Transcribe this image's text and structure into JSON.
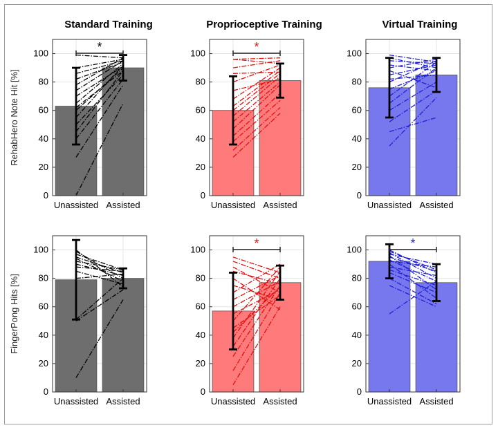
{
  "figure": {
    "column_titles": [
      "Standard Training",
      "Proprioceptive Training",
      "Virtual Training"
    ],
    "row_labels": [
      "RehabHero Note Hit [%]",
      "FingerPong Hits [%]"
    ]
  },
  "chart_data": [
    {
      "type": "bar",
      "title": "Standard Training",
      "ylabel": "RehabHero Note Hit [%]",
      "categories": [
        "Unassisted",
        "Assisted"
      ],
      "values": [
        63,
        90
      ],
      "error": [
        27,
        9
      ],
      "ylim": [
        0,
        110
      ],
      "yticks": [
        0,
        20,
        40,
        60,
        80,
        100
      ],
      "grid": true,
      "color": "#6e6e6e",
      "line_color": "#000000",
      "significant": "*",
      "sig_color": "#000000",
      "pairs": [
        [
          0,
          65
        ],
        [
          27,
          78
        ],
        [
          40,
          82
        ],
        [
          45,
          88
        ],
        [
          50,
          85
        ],
        [
          55,
          92
        ],
        [
          60,
          90
        ],
        [
          62,
          88
        ],
        [
          65,
          93
        ],
        [
          70,
          91
        ],
        [
          74,
          95
        ],
        [
          78,
          97
        ],
        [
          82,
          94
        ],
        [
          86,
          95
        ],
        [
          90,
          96
        ],
        [
          99,
          97
        ]
      ]
    },
    {
      "type": "bar",
      "title": "Proprioceptive Training",
      "ylabel": "",
      "categories": [
        "Unassisted",
        "Assisted"
      ],
      "values": [
        60,
        81
      ],
      "error": [
        24,
        12
      ],
      "ylim": [
        0,
        110
      ],
      "yticks": [
        0,
        20,
        40,
        60,
        80,
        100
      ],
      "grid": true,
      "color": "#ff7b7b",
      "line_color": "#e01010",
      "significant": "*",
      "sig_color": "#e01010",
      "pairs": [
        [
          27,
          58
        ],
        [
          32,
          62
        ],
        [
          38,
          67
        ],
        [
          42,
          72
        ],
        [
          47,
          78
        ],
        [
          52,
          80
        ],
        [
          56,
          84
        ],
        [
          60,
          86
        ],
        [
          63,
          88
        ],
        [
          68,
          90
        ],
        [
          74,
          82
        ],
        [
          80,
          92
        ],
        [
          86,
          87
        ],
        [
          90,
          95
        ],
        [
          96,
          93
        ],
        [
          96,
          97
        ]
      ]
    },
    {
      "type": "bar",
      "title": "Virtual Training",
      "ylabel": "",
      "categories": [
        "Unassisted",
        "Assisted"
      ],
      "values": [
        76,
        85
      ],
      "error": [
        21,
        12
      ],
      "ylim": [
        0,
        110
      ],
      "yticks": [
        0,
        20,
        40,
        60,
        80,
        100
      ],
      "grid": true,
      "color": "#7777ee",
      "line_color": "#1f1fd6",
      "significant": "",
      "sig_color": "#1f1fd6",
      "pairs": [
        [
          35,
          69
        ],
        [
          45,
          55
        ],
        [
          52,
          74
        ],
        [
          60,
          80
        ],
        [
          65,
          90
        ],
        [
          70,
          94
        ],
        [
          75,
          88
        ],
        [
          80,
          95
        ],
        [
          82,
          85
        ],
        [
          85,
          92
        ],
        [
          88,
          76
        ],
        [
          90,
          96
        ],
        [
          92,
          88
        ],
        [
          95,
          93
        ],
        [
          97,
          90
        ],
        [
          99,
          94
        ]
      ]
    },
    {
      "type": "bar",
      "title": "",
      "ylabel": "FingerPong Hits [%]",
      "categories": [
        "Unassisted",
        "Assisted"
      ],
      "values": [
        79,
        80
      ],
      "error": [
        28,
        7
      ],
      "ylim": [
        0,
        110
      ],
      "yticks": [
        0,
        20,
        40,
        60,
        80,
        100
      ],
      "grid": true,
      "color": "#6e6e6e",
      "line_color": "#000000",
      "significant": "",
      "sig_color": "#000000",
      "pairs": [
        [
          10,
          65
        ],
        [
          50,
          72
        ],
        [
          51,
          80
        ],
        [
          80,
          83
        ],
        [
          85,
          76
        ],
        [
          88,
          85
        ],
        [
          90,
          82
        ],
        [
          92,
          86
        ],
        [
          94,
          78
        ],
        [
          95,
          84
        ],
        [
          97,
          86
        ],
        [
          99,
          80
        ],
        [
          100,
          74
        ]
      ]
    },
    {
      "type": "bar",
      "title": "",
      "ylabel": "",
      "categories": [
        "Unassisted",
        "Assisted"
      ],
      "values": [
        57,
        77
      ],
      "error": [
        27,
        12
      ],
      "ylim": [
        0,
        110
      ],
      "yticks": [
        0,
        20,
        40,
        60,
        80,
        100
      ],
      "grid": true,
      "color": "#ff7b7b",
      "line_color": "#e01010",
      "significant": "*",
      "sig_color": "#e01010",
      "pairs": [
        [
          5,
          60
        ],
        [
          15,
          70
        ],
        [
          25,
          75
        ],
        [
          32,
          80
        ],
        [
          38,
          85
        ],
        [
          42,
          74
        ],
        [
          45,
          68
        ],
        [
          50,
          88
        ],
        [
          55,
          72
        ],
        [
          60,
          78
        ],
        [
          65,
          82
        ],
        [
          70,
          90
        ],
        [
          75,
          65
        ],
        [
          80,
          58
        ],
        [
          85,
          76
        ],
        [
          88,
          70
        ],
        [
          92,
          80
        ],
        [
          95,
          84
        ]
      ]
    },
    {
      "type": "bar",
      "title": "",
      "ylabel": "",
      "categories": [
        "Unassisted",
        "Assisted"
      ],
      "values": [
        92,
        77
      ],
      "error": [
        12,
        13
      ],
      "ylim": [
        0,
        110
      ],
      "yticks": [
        0,
        20,
        40,
        60,
        80,
        100
      ],
      "grid": true,
      "color": "#7777ee",
      "line_color": "#1f1fd6",
      "significant": "*",
      "sig_color": "#1f1fd6",
      "pairs": [
        [
          55,
          78
        ],
        [
          75,
          60
        ],
        [
          80,
          62
        ],
        [
          84,
          70
        ],
        [
          86,
          75
        ],
        [
          88,
          82
        ],
        [
          90,
          66
        ],
        [
          92,
          88
        ],
        [
          93,
          78
        ],
        [
          95,
          85
        ],
        [
          96,
          72
        ],
        [
          97,
          90
        ],
        [
          98,
          80
        ],
        [
          99,
          86
        ],
        [
          100,
          84
        ]
      ]
    }
  ]
}
